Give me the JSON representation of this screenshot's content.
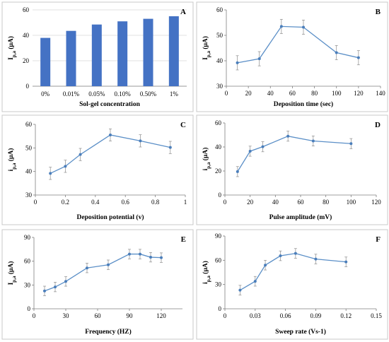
{
  "chart_data": [
    {
      "id": "A",
      "panel_letter": "A",
      "type": "bar",
      "categories": [
        "0%",
        "0.01%",
        "0.05%",
        "0.10%",
        "0.50%",
        "1%"
      ],
      "values": [
        38,
        43.5,
        48.5,
        51,
        53,
        55
      ],
      "xlabel": "Sol-gel concentration",
      "ylabel": "Ip,a (μA)",
      "ylabel_main": "I",
      "ylabel_sub": "p,a",
      "ylabel_unit": " (μA)",
      "ylim": [
        0,
        60
      ],
      "yticks": [
        0,
        20,
        40,
        60
      ],
      "grid": "y"
    },
    {
      "id": "B",
      "panel_letter": "B",
      "type": "line",
      "x": [
        10,
        30,
        50,
        70,
        100,
        120
      ],
      "y": [
        39.2,
        40.8,
        53.5,
        53.2,
        43.2,
        41.2
      ],
      "yerr": [
        2.8,
        2.8,
        2.8,
        2.8,
        2.8,
        2.8
      ],
      "xlabel": "Deposition time (sec)",
      "ylabel": "Ip,a (μA)",
      "ylabel_main": "I",
      "ylabel_sub": "p,a",
      "ylabel_unit": " (μA)",
      "xlim": [
        0,
        140
      ],
      "xticks": [
        0,
        20,
        40,
        60,
        80,
        100,
        120,
        140
      ],
      "xtick_labels": [
        "0",
        "20",
        "40",
        "60",
        "80",
        "100",
        "120",
        "140"
      ],
      "ylim": [
        30,
        60
      ],
      "yticks": [
        30,
        40,
        50,
        60
      ],
      "grid": "none"
    },
    {
      "id": "C",
      "panel_letter": "C",
      "type": "line",
      "x": [
        0.1,
        0.2,
        0.3,
        0.5,
        0.7,
        0.9
      ],
      "y": [
        39.2,
        42.2,
        47.2,
        55.5,
        53.0,
        50.2
      ],
      "yerr": [
        2.6,
        2.6,
        2.6,
        2.6,
        2.6,
        2.6
      ],
      "xlabel": "Deposition potential (v)",
      "ylabel": "Ip,a (μA)",
      "ylabel_main": "i",
      "ylabel_sub": "p,a",
      "ylabel_unit": " (μA)",
      "xlim": [
        0,
        1
      ],
      "xticks": [
        0,
        0.2,
        0.4,
        0.6,
        0.8,
        1
      ],
      "xtick_labels": [
        "0",
        "0.2",
        "0.4",
        "0.6",
        "0.8",
        "1"
      ],
      "ylim": [
        30,
        60
      ],
      "yticks": [
        30,
        40,
        50,
        60
      ],
      "grid": "none"
    },
    {
      "id": "D",
      "panel_letter": "D",
      "type": "line",
      "x": [
        10,
        20,
        30,
        50,
        70,
        100
      ],
      "y": [
        19.5,
        36.5,
        40.2,
        49.0,
        45.0,
        42.8
      ],
      "yerr": [
        4.2,
        4.2,
        4.2,
        4.2,
        4.2,
        4.2
      ],
      "xlabel": "Pulse amplitude (mV)",
      "ylabel": "Ip,a (μA)",
      "ylabel_main": "i",
      "ylabel_sub": "p,a",
      "ylabel_unit": " (μA)",
      "xlim": [
        0,
        120
      ],
      "xticks": [
        0,
        20,
        40,
        60,
        80,
        100,
        120
      ],
      "xtick_labels": [
        "0",
        "20",
        "40",
        "60",
        "80",
        "100",
        "120"
      ],
      "ylim": [
        0,
        60
      ],
      "yticks": [
        0,
        20,
        40,
        60
      ],
      "grid": "none"
    },
    {
      "id": "E",
      "panel_letter": "E",
      "type": "line",
      "x": [
        10,
        20,
        30,
        50,
        70,
        90,
        100,
        110,
        120
      ],
      "y": [
        22.5,
        27.5,
        34.5,
        51.5,
        55.5,
        69.0,
        69.0,
        65.0,
        64.5
      ],
      "yerr": [
        6.0,
        6.0,
        6.0,
        6.0,
        6.0,
        6.0,
        6.0,
        6.0,
        6.0
      ],
      "xlabel": "Frequency (HZ)",
      "ylabel": "Ip,a (μA)",
      "ylabel_main": "I",
      "ylabel_sub": "p,a",
      "ylabel_unit": " (μA)",
      "xlim": [
        0,
        140
      ],
      "xticks": [
        0,
        30,
        60,
        90,
        120
      ],
      "xtick_labels": [
        "0",
        "30",
        "60",
        "90",
        "120"
      ],
      "ylim": [
        0,
        90
      ],
      "yticks": [
        0,
        30,
        60,
        90
      ],
      "grid": "none"
    },
    {
      "id": "F",
      "panel_letter": "F",
      "type": "line",
      "x": [
        0.015,
        0.03,
        0.04,
        0.055,
        0.07,
        0.09,
        0.12
      ],
      "y": [
        23.0,
        34.0,
        54.0,
        65.5,
        68.5,
        61.5,
        58.0
      ],
      "yerr": [
        6.0,
        6.0,
        6.0,
        6.0,
        6.0,
        6.0,
        6.0
      ],
      "xlabel": "Sweep rate (Vs-1)",
      "ylabel": "Ip,a (μA)",
      "ylabel_main": "i",
      "ylabel_sub": "p,a",
      "ylabel_unit": " (μA)",
      "xlim": [
        0,
        0.15
      ],
      "xticks": [
        0,
        0.03,
        0.06,
        0.09,
        0.12,
        0.15
      ],
      "xtick_labels": [
        "0",
        "0.03",
        "0.06",
        "0.09",
        "0.12",
        "0.15"
      ],
      "ylim": [
        0,
        90
      ],
      "yticks": [
        0,
        30,
        60,
        90
      ],
      "grid": "none"
    }
  ]
}
